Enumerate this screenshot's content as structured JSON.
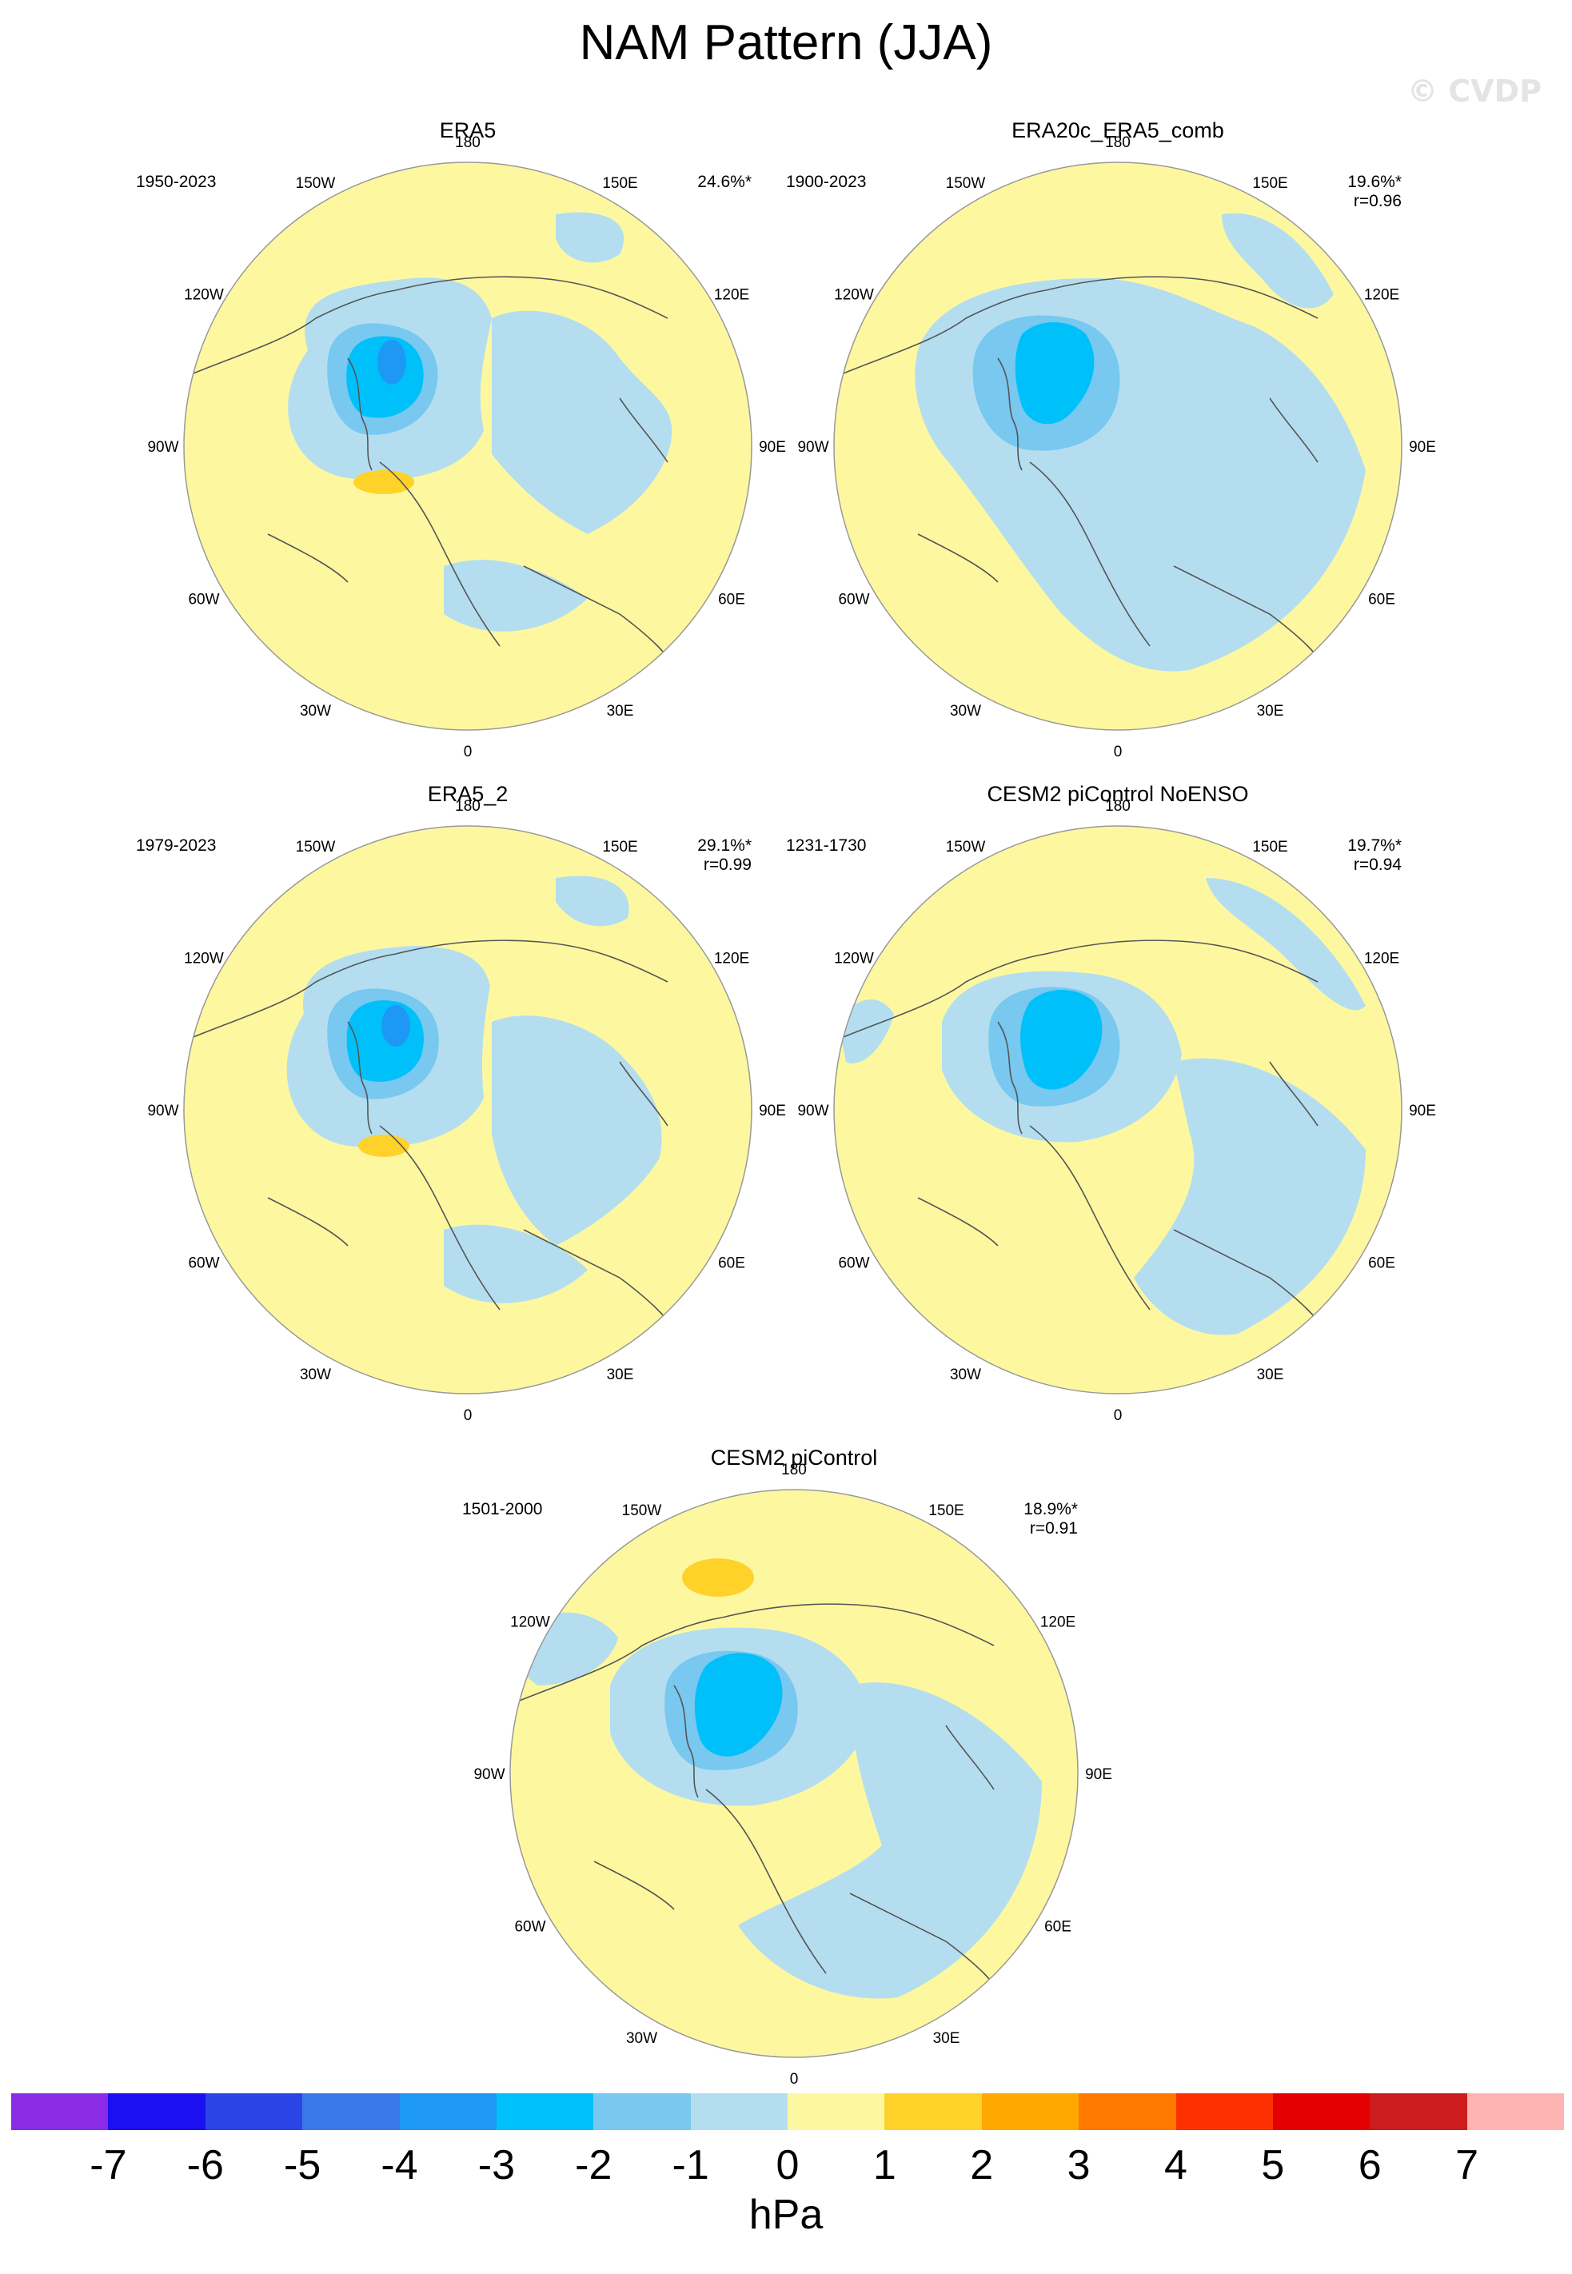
{
  "title": "NAM Pattern (JJA)",
  "watermark": "© CVDP",
  "lon_labels": [
    "180",
    "150E",
    "120E",
    "90E",
    "60E",
    "30E",
    "0",
    "30W",
    "60W",
    "90W",
    "120W",
    "150W"
  ],
  "panels": [
    {
      "title": "ERA5",
      "period": "1950-2023",
      "variance": "24.6%*",
      "correlation": ""
    },
    {
      "title": "ERA20c_ERA5_comb",
      "period": "1900-2023",
      "variance": "19.6%*",
      "correlation": "r=0.96"
    },
    {
      "title": "ERA5_2",
      "period": "1979-2023",
      "variance": "29.1%*",
      "correlation": "r=0.99"
    },
    {
      "title": "CESM2 piControl NoENSO",
      "period": "1231-1730",
      "variance": "19.7%*",
      "correlation": "r=0.94"
    },
    {
      "title": "CESM2 piControl",
      "period": "1501-2000",
      "variance": "18.9%*",
      "correlation": "r=0.91"
    }
  ],
  "colorbar": {
    "colors": [
      "#8a2be6",
      "#1a10f0",
      "#2a44e6",
      "#3a78ea",
      "#1e98f5",
      "#00c0fa",
      "#78c8f0",
      "#b4def0",
      "#fdf8a0",
      "#ffd22a",
      "#ffa800",
      "#ff7800",
      "#ff3000",
      "#e40000",
      "#cc1c1c",
      "#ffb4b4"
    ],
    "labels": [
      "-7",
      "-6",
      "-5",
      "-4",
      "-3",
      "-2",
      "-1",
      "0",
      "1",
      "2",
      "3",
      "4",
      "5",
      "6",
      "7"
    ],
    "units": "hPa"
  }
}
